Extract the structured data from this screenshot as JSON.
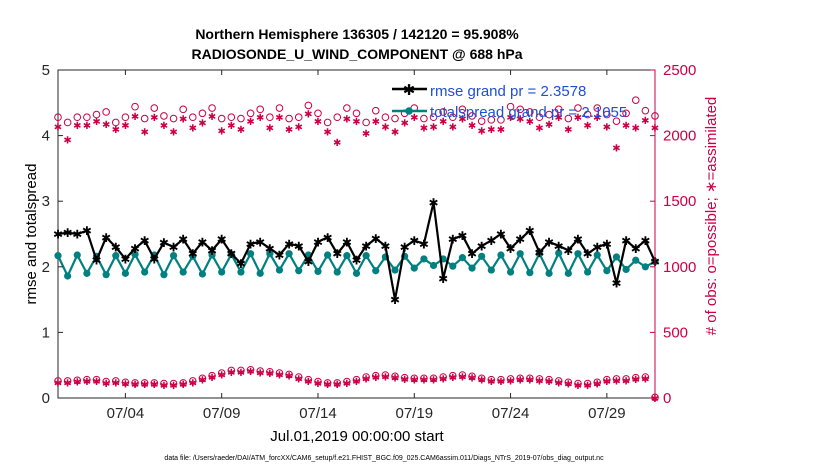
{
  "chart_data": {
    "type": "line",
    "title": [
      "Northern Hemisphere 136305 / 142120 = 95.908%",
      "RADIOSONDE_U_WIND_COMPONENT @ 688 hPa"
    ],
    "xlabel": "Jul.01,2019 00:00:00 start",
    "ylabel": "rmse and totalspread",
    "y2label": "# of obs: o=possible; ∗=assimilated",
    "xlim": [
      0,
      62
    ],
    "ylim": [
      0,
      5
    ],
    "y2lim": [
      0,
      2500
    ],
    "x_tick_labels": [
      "07/04",
      "07/09",
      "07/14",
      "07/19",
      "07/24",
      "07/29"
    ],
    "x_tick_positions": [
      7,
      17,
      27,
      37,
      47,
      57
    ],
    "y_ticks": [
      "0",
      "1",
      "2",
      "3",
      "4",
      "5"
    ],
    "y2_ticks": [
      "0",
      "500",
      "1000",
      "1500",
      "2000",
      "2500"
    ],
    "legend": [
      "rmse grand pr = 2.3578",
      "totalspread grand pr = 2.1055"
    ],
    "footnote": "data file: /Users/raeder/DAI/ATM_forcXX/CAM6_setup/f.e21.FHIST_BGC.f09_025.CAM6assim.011/Diags_NTrS_2019-07/obs_diag_output.nc",
    "colors": {
      "rmse": "#000000",
      "spread": "#008080",
      "obs": "#cc0044",
      "legend_text": "#1f4fd8"
    },
    "series": [
      {
        "name": "rmse",
        "values": [
          2.5,
          2.52,
          2.5,
          2.55,
          2.1,
          2.45,
          2.3,
          2.12,
          2.28,
          2.4,
          2.12,
          2.37,
          2.3,
          2.42,
          2.2,
          2.38,
          2.25,
          2.42,
          2.2,
          2.05,
          2.35,
          2.38,
          2.28,
          2.18,
          2.35,
          2.32,
          2.08,
          2.38,
          2.45,
          2.2,
          2.38,
          2.1,
          2.32,
          2.43,
          2.32,
          1.5,
          2.3,
          2.4,
          2.35,
          2.98,
          1.82,
          2.42,
          2.48,
          2.2,
          2.32,
          2.4,
          2.5,
          2.28,
          2.42,
          2.55,
          2.22,
          2.38,
          2.32,
          2.25,
          2.42,
          2.2,
          2.3,
          2.35,
          1.75,
          2.4,
          2.28,
          2.4,
          2.08
        ]
      },
      {
        "name": "totalspread",
        "values": [
          2.17,
          1.86,
          2.18,
          1.9,
          2.16,
          1.88,
          2.17,
          1.9,
          2.19,
          1.92,
          2.18,
          1.88,
          2.17,
          1.92,
          2.16,
          1.89,
          2.18,
          1.92,
          2.19,
          1.92,
          2.2,
          1.9,
          2.2,
          1.95,
          2.2,
          1.94,
          2.18,
          1.93,
          2.18,
          1.92,
          2.17,
          1.9,
          2.17,
          1.94,
          2.15,
          1.95,
          2.16,
          1.98,
          2.12,
          2.02,
          2.12,
          2.01,
          2.14,
          1.98,
          2.16,
          1.95,
          2.18,
          1.92,
          2.2,
          1.91,
          2.2,
          1.9,
          2.21,
          1.9,
          2.2,
          1.92,
          2.18,
          1.94,
          2.15,
          1.96,
          2.1,
          2.0,
          2.08
        ]
      }
    ],
    "obs_possible_high": [
      2140,
      2100,
      2140,
      2140,
      2160,
      2180,
      2100,
      2140,
      2220,
      2130,
      2210,
      2150,
      2130,
      2200,
      2140,
      2170,
      2210,
      2130,
      2140,
      2130,
      2170,
      2200,
      2140,
      2210,
      2130,
      2140,
      2230,
      2170,
      2100,
      2140,
      2210,
      2170,
      2100,
      2190,
      2140,
      2130,
      2170,
      2210,
      2130,
      2140,
      2180,
      2140,
      2200,
      2150,
      2110,
      2120,
      2120,
      2220,
      2200,
      2180,
      2140,
      2160,
      2200,
      2130,
      2210,
      2160,
      2210,
      2160,
      2110,
      2170,
      2270,
      2190,
      2150
    ],
    "obs_assim_high": [
      2070,
      1970,
      2080,
      2080,
      2110,
      2090,
      2050,
      2080,
      2150,
      2030,
      2140,
      2080,
      2030,
      2130,
      2060,
      2100,
      2150,
      2040,
      2080,
      2050,
      2110,
      2140,
      2060,
      2140,
      2050,
      2070,
      2170,
      2110,
      2030,
      1950,
      2130,
      2110,
      2020,
      2110,
      2070,
      2030,
      2100,
      2140,
      2060,
      2070,
      2110,
      2070,
      2130,
      2080,
      2040,
      2050,
      2050,
      2140,
      2130,
      2110,
      2060,
      2090,
      2140,
      2050,
      2140,
      2080,
      2140,
      2070,
      1910,
      2080,
      2060,
      2120,
      2060
    ],
    "obs_possible_low": [
      130,
      130,
      135,
      140,
      140,
      125,
      130,
      120,
      115,
      115,
      115,
      110,
      110,
      115,
      130,
      150,
      170,
      190,
      210,
      210,
      215,
      205,
      200,
      190,
      180,
      160,
      140,
      125,
      115,
      115,
      125,
      140,
      160,
      170,
      175,
      165,
      155,
      150,
      150,
      150,
      160,
      170,
      175,
      165,
      150,
      140,
      140,
      145,
      150,
      150,
      145,
      140,
      130,
      120,
      110,
      110,
      120,
      140,
      145,
      145,
      155,
      160,
      5
    ],
    "obs_assim_low": [
      120,
      120,
      125,
      130,
      130,
      115,
      120,
      110,
      105,
      105,
      105,
      100,
      100,
      105,
      120,
      140,
      160,
      180,
      200,
      200,
      205,
      195,
      190,
      180,
      170,
      150,
      130,
      115,
      105,
      105,
      115,
      130,
      150,
      160,
      165,
      155,
      145,
      140,
      140,
      140,
      150,
      160,
      165,
      155,
      140,
      130,
      130,
      135,
      140,
      140,
      135,
      130,
      120,
      110,
      100,
      100,
      110,
      130,
      135,
      135,
      145,
      150,
      0
    ]
  }
}
